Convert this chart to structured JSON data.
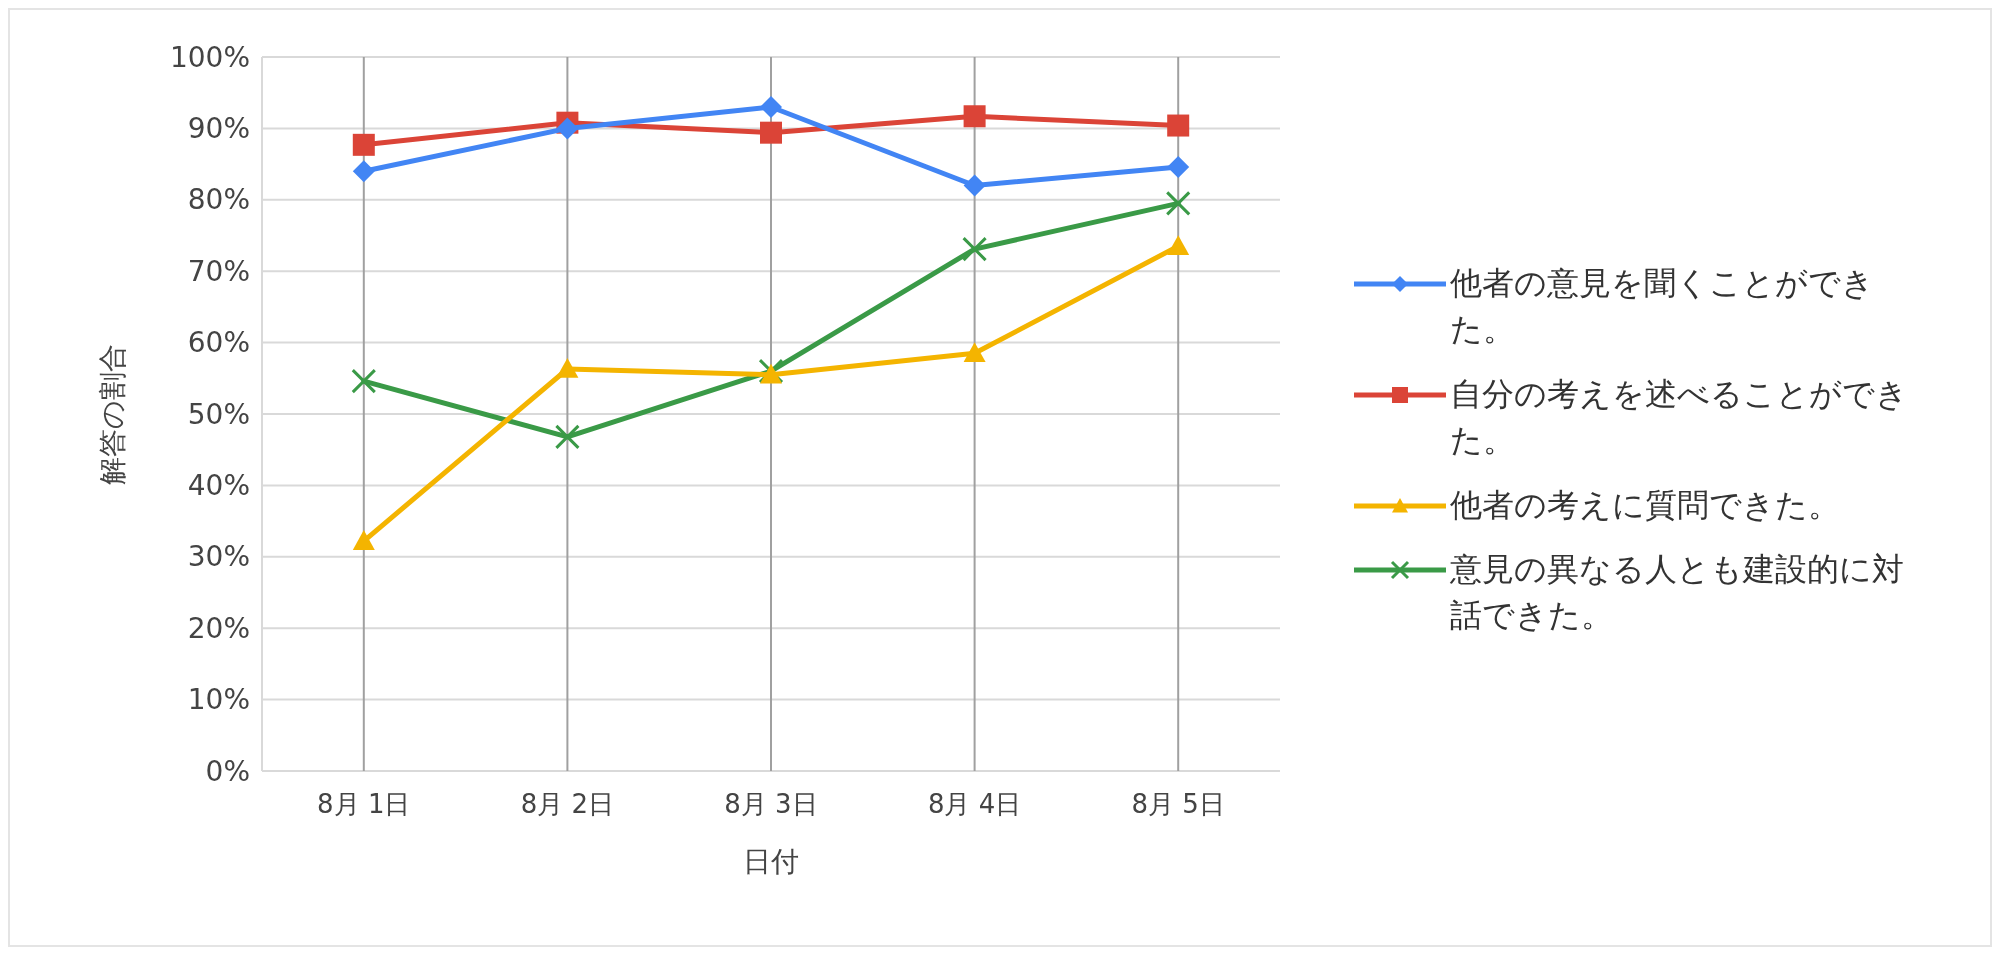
{
  "chart_data": {
    "type": "line",
    "xlabel": "日付",
    "ylabel": "解答の割合",
    "categories": [
      "8月 1日",
      "8月 2日",
      "8月 3日",
      "8月 4日",
      "8月 5日"
    ],
    "series": [
      {
        "name": "他者の意見を聞くことができた。",
        "color": "#4285f4",
        "marker": "diamond",
        "values": [
          84,
          90,
          93,
          82,
          84.6
        ]
      },
      {
        "name": "自分の考えを述べることができた。",
        "color": "#db4437",
        "marker": "square",
        "values": [
          87.7,
          90.8,
          89.4,
          91.7,
          90.4
        ]
      },
      {
        "name": "他者の考えに質問できた。",
        "color": "#f4b400",
        "marker": "triangle",
        "values": [
          32.2,
          56.3,
          55.5,
          58.5,
          73.5
        ]
      },
      {
        "name": "意見の異なる人とも建設的に対話できた。",
        "color": "#3a9a47",
        "marker": "cross",
        "values": [
          54.6,
          46.8,
          56,
          73.1,
          79.5
        ]
      }
    ],
    "ylim": [
      0,
      100
    ],
    "yticks": [
      {
        "value": 0,
        "label": "0%"
      },
      {
        "value": 10,
        "label": "10%"
      },
      {
        "value": 20,
        "label": "20%"
      },
      {
        "value": 30,
        "label": "30%"
      },
      {
        "value": 40,
        "label": "40%"
      },
      {
        "value": 50,
        "label": "50%"
      },
      {
        "value": 60,
        "label": "60%"
      },
      {
        "value": 70,
        "label": "70%"
      },
      {
        "value": 80,
        "label": "80%"
      },
      {
        "value": 90,
        "label": "90%"
      },
      {
        "value": 100,
        "label": "100%"
      }
    ],
    "grid": true,
    "legend": "right",
    "line_style": "solid"
  }
}
